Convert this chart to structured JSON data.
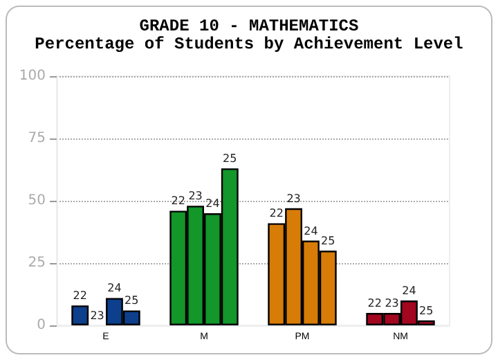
{
  "chart_data": {
    "type": "bar",
    "title": "GRADE 10 - MATHEMATICS",
    "subtitle": "Percentage of Students by Achievement Level",
    "categories": [
      "E",
      "M",
      "PM",
      "NM"
    ],
    "series": [
      {
        "name": "22",
        "colors": [
          "#0d3f8c",
          "#13962a",
          "#d87c08",
          "#a3061f"
        ],
        "values": [
          8,
          46,
          41,
          5
        ]
      },
      {
        "name": "23",
        "colors": [
          "#0d3f8c",
          "#13962a",
          "#d87c08",
          "#a3061f"
        ],
        "values": [
          0,
          48,
          47,
          5
        ]
      },
      {
        "name": "24",
        "colors": [
          "#0d3f8c",
          "#13962a",
          "#d87c08",
          "#a3061f"
        ],
        "values": [
          11,
          45,
          34,
          10
        ]
      },
      {
        "name": "25",
        "colors": [
          "#0d3f8c",
          "#13962a",
          "#d87c08",
          "#a3061f"
        ],
        "values": [
          6,
          63,
          30,
          2
        ]
      }
    ],
    "ylim": [
      0,
      100
    ],
    "yticks": [
      0,
      25,
      50,
      75,
      100
    ],
    "grid": "y",
    "legend": false
  }
}
